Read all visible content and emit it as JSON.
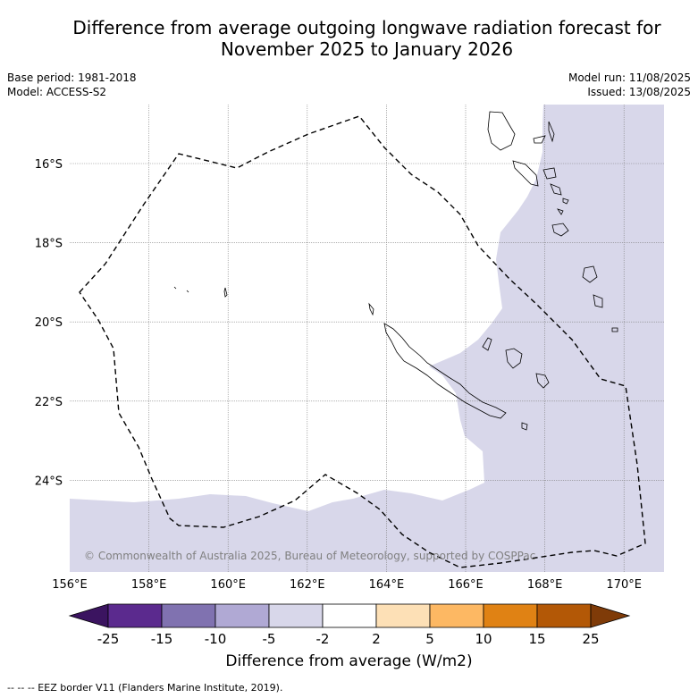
{
  "title_line1": "Difference from average outgoing longwave radiation forecast for",
  "title_line2": "November 2025 to January 2026",
  "base_period": "Base period: 1981-2018",
  "model": "Model: ACCESS-S2",
  "model_run": "Model run: 11/08/2025",
  "issued": "Issued: 13/08/2025",
  "copyright": "© Commonwealth of Australia 2025, Bureau of Meteorology, supported by COSPPac",
  "lon_labels": [
    "156°E",
    "158°E",
    "160°E",
    "162°E",
    "164°E",
    "166°E",
    "168°E",
    "170°E"
  ],
  "lat_labels": [
    "16°S",
    "18°S",
    "20°S",
    "22°S",
    "24°S"
  ],
  "colorbar": {
    "title": "Difference from average (W/m2)",
    "tick_labels": [
      "-25",
      "-15",
      "-10",
      "-5",
      "-2",
      "2",
      "5",
      "10",
      "15",
      "25"
    ],
    "colors": [
      "#3b1460",
      "#5b2a8e",
      "#8072b0",
      "#b0a9d4",
      "#d8d7ea",
      "#ffffff",
      "#fde0b6",
      "#fdb863",
      "#e08214",
      "#b35806",
      "#7f3b08"
    ]
  },
  "footnote": "--  --  -- EEZ border V11 (Flanders Marine Institute, 2019).",
  "map_colors": {
    "ocean_anomaly": "#d8d7ea",
    "neutral": "#ffffff",
    "grid": "#808080"
  }
}
